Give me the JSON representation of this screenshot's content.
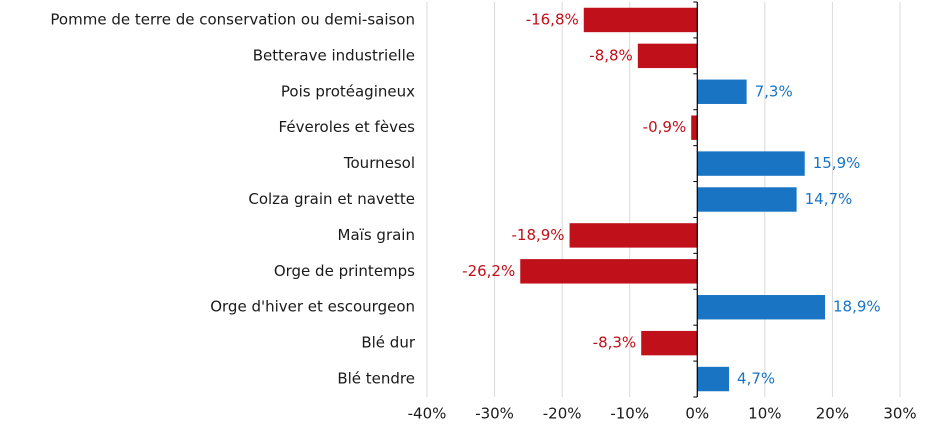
{
  "chart_data": {
    "type": "hbar",
    "categories": [
      "Pomme de terre de conservation ou demi-saison",
      "Betterave industrielle",
      "Pois protéagineux",
      "Féveroles et fèves",
      "Tournesol",
      "Colza grain et navette",
      "Maïs grain",
      "Orge de printemps",
      "Orge d'hiver et escourgeon",
      "Blé dur",
      "Blé tendre"
    ],
    "values": [
      -16.8,
      -8.8,
      7.3,
      -0.9,
      15.9,
      14.7,
      -18.9,
      -26.2,
      18.9,
      -8.3,
      4.7
    ],
    "value_labels": [
      "-16,8%",
      "-8,8%",
      "7,3%",
      "-0,9%",
      "15,9%",
      "14,7%",
      "-18,9%",
      "-26,2%",
      "18,9%",
      "-8,3%",
      "4,7%"
    ],
    "color_positive": "#1a74c4",
    "color_negative": "#c0101a",
    "xlim": [
      -40,
      30
    ],
    "xticks": [
      {
        "value": -40,
        "label": "-40%"
      },
      {
        "value": -30,
        "label": "-30%"
      },
      {
        "value": -20,
        "label": "-20%"
      },
      {
        "value": -10,
        "label": "-10%"
      },
      {
        "value": 0,
        "label": "0%"
      },
      {
        "value": 10,
        "label": "10%"
      },
      {
        "value": 20,
        "label": "20%"
      },
      {
        "value": 30,
        "label": "30%"
      }
    ],
    "grid": true
  }
}
